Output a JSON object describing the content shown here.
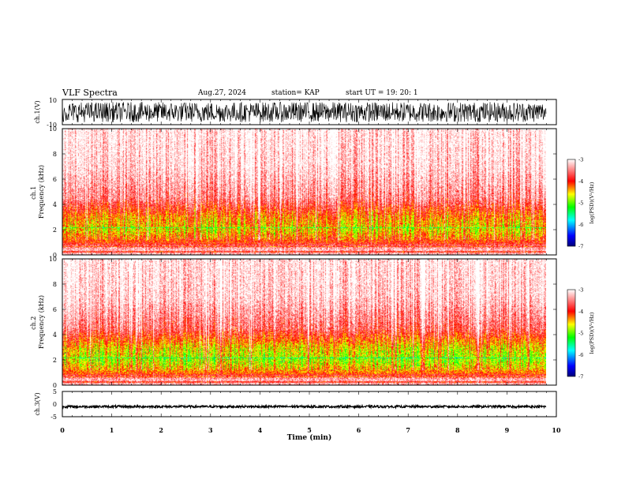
{
  "header": {
    "title": "VLF Spectra",
    "date": "Aug.27, 2024",
    "station": "station= KAP",
    "start": "start  UT  =   19: 20: 1"
  },
  "colors": {
    "waveform": "#000000",
    "frame": "#000000",
    "colormap": [
      "#00007a",
      "#0000ff",
      "#00ffff",
      "#00ff00",
      "#ffff00",
      "#ff0000",
      "#ff9a9a",
      "#ffffff"
    ]
  },
  "chart_data": [
    {
      "type": "line",
      "panel": "ch1-waveform",
      "ylabel": "ch.1(V)",
      "ylim": [
        -10,
        10
      ],
      "yticks": [
        "10",
        "-10"
      ],
      "xlim": [
        0,
        10
      ],
      "note_signal": "dense noise trace spanning roughly -8 to 8 V over 0 to 9.8 min"
    },
    {
      "type": "heatmap",
      "panel": "ch1-spectrogram",
      "ylabel": "ch.1\nFrequency (kHz)",
      "ylim": [
        0,
        10
      ],
      "yticks": [
        "0",
        "2",
        "4",
        "6",
        "8",
        "10"
      ],
      "xlim": [
        0,
        10
      ],
      "data_extent_min": 9.8,
      "colorbar": {
        "label": "log(PSD)(V²/Hz)",
        "range": [
          -7,
          -3
        ],
        "ticks": [
          "-3",
          "-4",
          "-5",
          "-6",
          "-7"
        ]
      },
      "intensity_profile": [
        {
          "freq_khz": 0.5,
          "log_psd": -3.3
        },
        {
          "freq_khz": 1.0,
          "log_psd": -4.0
        },
        {
          "freq_khz": 2.0,
          "log_psd": -4.6
        },
        {
          "freq_khz": 3.0,
          "log_psd": -4.3
        },
        {
          "freq_khz": 4.5,
          "log_psd": -3.5
        },
        {
          "freq_khz": 7.0,
          "log_psd": -3.1
        },
        {
          "freq_khz": 10.0,
          "log_psd": -3.0
        }
      ]
    },
    {
      "type": "heatmap",
      "panel": "ch2-spectrogram",
      "ylabel": "ch.2\nFrequency (kHz)",
      "ylim": [
        0,
        10
      ],
      "yticks": [
        "0",
        "2",
        "4",
        "6",
        "8",
        "10"
      ],
      "xlim": [
        0,
        10
      ],
      "data_extent_min": 9.8,
      "colorbar": {
        "label": "log(PSD)(V²/Hz)",
        "range": [
          -7,
          -3
        ],
        "ticks": [
          "-3",
          "-4",
          "-5",
          "-6",
          "-7"
        ]
      },
      "intensity_profile": [
        {
          "freq_khz": 0.5,
          "log_psd": -3.3
        },
        {
          "freq_khz": 1.0,
          "log_psd": -4.2
        },
        {
          "freq_khz": 2.0,
          "log_psd": -4.8
        },
        {
          "freq_khz": 3.0,
          "log_psd": -4.5
        },
        {
          "freq_khz": 4.5,
          "log_psd": -3.6
        },
        {
          "freq_khz": 7.0,
          "log_psd": -3.1
        },
        {
          "freq_khz": 10.0,
          "log_psd": -3.0
        }
      ]
    },
    {
      "type": "line",
      "panel": "ch3-waveform",
      "ylabel": "ch.3(V)",
      "ylim": [
        -5,
        5
      ],
      "yticks": [
        "5",
        "0",
        "-5"
      ],
      "xlim": [
        0,
        10
      ],
      "note_signal": "flat thick band near -1 V"
    }
  ],
  "xaxis": {
    "label": "Time  (min)",
    "ticks": [
      "0",
      "1",
      "2",
      "3",
      "4",
      "5",
      "6",
      "7",
      "8",
      "9",
      "10"
    ]
  }
}
